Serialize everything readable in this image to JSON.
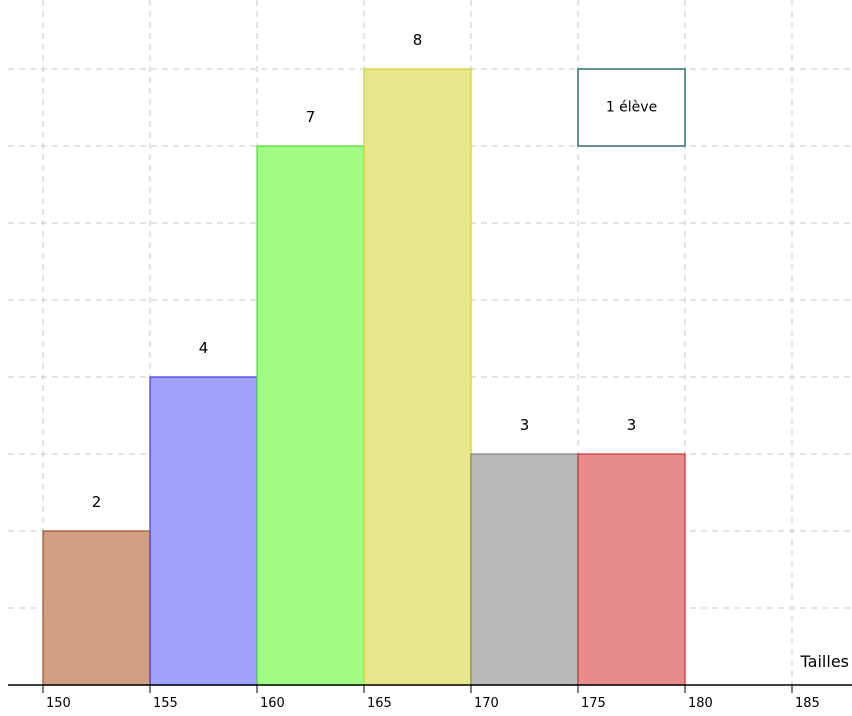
{
  "chart_data": {
    "type": "bar",
    "subtype": "histogram",
    "title": "",
    "xlabel": "Tailles",
    "ylabel": "",
    "bin_edges": [
      150,
      155,
      160,
      165,
      170,
      175,
      180
    ],
    "x_ticks": [
      "150",
      "155",
      "160",
      "165",
      "170",
      "175",
      "180",
      "185"
    ],
    "values": [
      2,
      4,
      7,
      8,
      3,
      3
    ],
    "value_labels": [
      "2",
      "4",
      "7",
      "8",
      "3",
      "3"
    ],
    "colors": [
      "#d09e82",
      "#a0a0f8",
      "#a0fc82",
      "#e6e68a",
      "#b8b8b8",
      "#e88b8b"
    ],
    "stroke_colors": [
      "#a0522d",
      "#3a3adc",
      "#4ade2e",
      "#d8cc30",
      "#808080",
      "#c83232"
    ],
    "xlim": [
      148,
      188
    ],
    "ylim": [
      0,
      8.2
    ],
    "grid": true,
    "legend": {
      "label": "1 élève",
      "unit_value": 1,
      "unit_width": 5,
      "position": "top-right",
      "fill": "#ffffff",
      "stroke": "#2f6f6f"
    }
  }
}
